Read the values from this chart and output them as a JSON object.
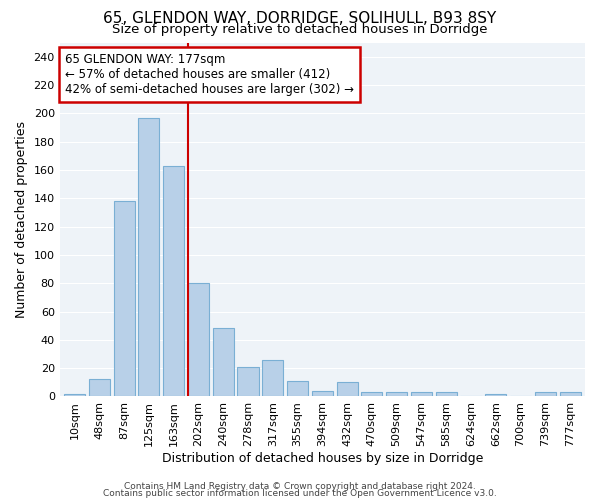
{
  "title1": "65, GLENDON WAY, DORRIDGE, SOLIHULL, B93 8SY",
  "title2": "Size of property relative to detached houses in Dorridge",
  "xlabel": "Distribution of detached houses by size in Dorridge",
  "ylabel": "Number of detached properties",
  "categories": [
    "10sqm",
    "48sqm",
    "87sqm",
    "125sqm",
    "163sqm",
    "202sqm",
    "240sqm",
    "278sqm",
    "317sqm",
    "355sqm",
    "394sqm",
    "432sqm",
    "470sqm",
    "509sqm",
    "547sqm",
    "585sqm",
    "624sqm",
    "662sqm",
    "700sqm",
    "739sqm",
    "777sqm"
  ],
  "values": [
    2,
    12,
    138,
    197,
    163,
    80,
    48,
    21,
    26,
    11,
    4,
    10,
    3,
    3,
    3,
    3,
    0,
    2,
    0,
    3,
    3
  ],
  "bar_color": "#b8d0e8",
  "bar_edge_color": "#7aafd4",
  "vline_x": 4.57,
  "vline_color": "#cc0000",
  "ylim": [
    0,
    250
  ],
  "yticks": [
    0,
    20,
    40,
    60,
    80,
    100,
    120,
    140,
    160,
    180,
    200,
    220,
    240
  ],
  "annotation_title": "65 GLENDON WAY: 177sqm",
  "annotation_line1": "← 57% of detached houses are smaller (412)",
  "annotation_line2": "42% of semi-detached houses are larger (302) →",
  "annotation_box_color": "#ffffff",
  "annotation_box_edge_color": "#cc0000",
  "bg_color": "#eef3f8",
  "footer1": "Contains HM Land Registry data © Crown copyright and database right 2024.",
  "footer2": "Contains public sector information licensed under the Open Government Licence v3.0.",
  "title1_fontsize": 11,
  "title2_fontsize": 9.5,
  "xlabel_fontsize": 9,
  "ylabel_fontsize": 9,
  "tick_fontsize": 8,
  "annotation_fontsize": 8.5,
  "footer_fontsize": 6.5
}
